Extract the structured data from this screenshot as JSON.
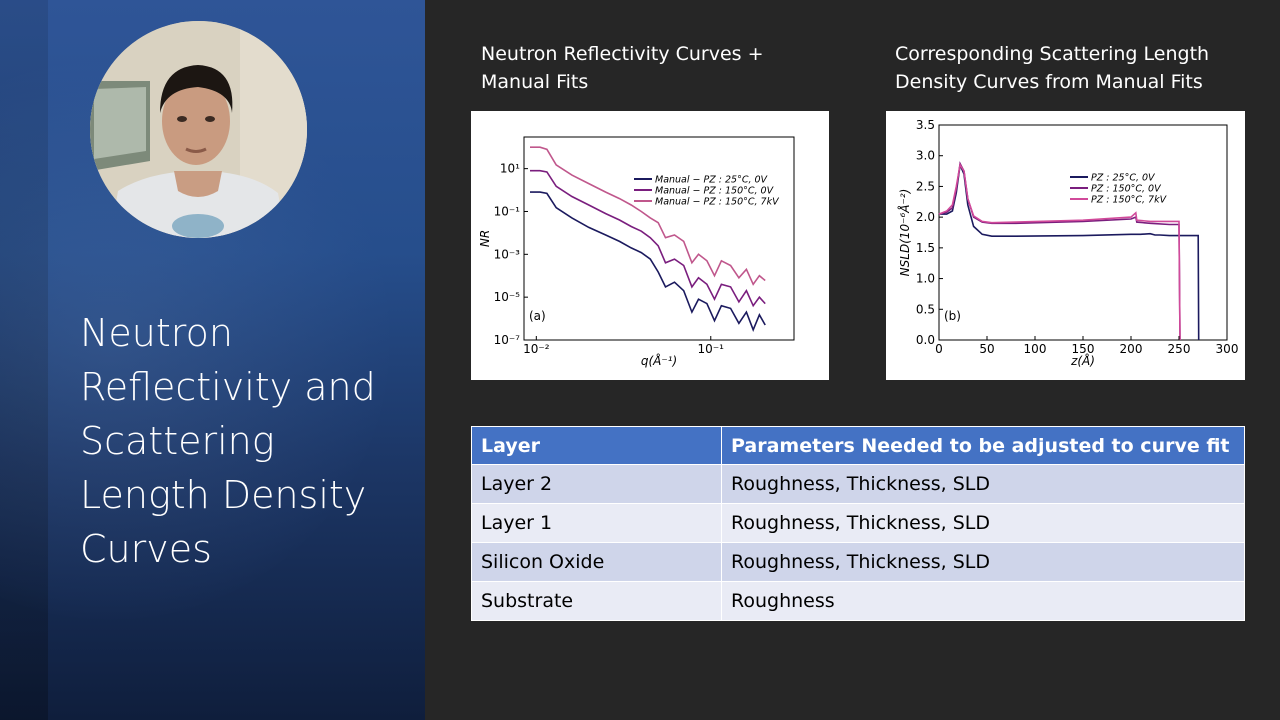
{
  "slide": {
    "title": "Neutron Reflectivity and Scattering Length Density Curves",
    "colors": {
      "panel_blue": "#2f5597",
      "table_header": "#4472c4",
      "row_odd": "#cfd5ea",
      "row_even": "#e9ebf5",
      "background": "#262626"
    }
  },
  "webcam": {
    "icon": "presenter-video-feed"
  },
  "captions": {
    "nr": "Neutron Reflectivity Curves + Manual Fits",
    "sld": "Corresponding Scattering Length Density Curves from Manual Fits"
  },
  "chart_data": [
    {
      "type": "line",
      "panel_label": "(a)",
      "xlabel": "q(Å⁻¹)",
      "ylabel": "NR",
      "x_scale": "log",
      "y_scale": "log",
      "xlim": [
        0.0085,
        0.3
      ],
      "ylim": [
        1e-07,
        300
      ],
      "x_ticks": [
        {
          "value": 0.01,
          "label": "10⁻²"
        },
        {
          "value": 0.1,
          "label": "10⁻¹"
        }
      ],
      "y_ticks": [
        {
          "value": 10,
          "label": "10¹"
        },
        {
          "value": 0.1,
          "label": "10⁻¹"
        },
        {
          "value": 0.001,
          "label": "10⁻³"
        },
        {
          "value": 1e-05,
          "label": "10⁻⁵"
        },
        {
          "value": 1e-07,
          "label": "10⁻⁷"
        }
      ],
      "legend_position": "top-right",
      "series": [
        {
          "name": "Manual − PZ : 25°C, 0V",
          "color": "#1b1a5e",
          "x": [
            0.0092,
            0.0105,
            0.0115,
            0.013,
            0.016,
            0.02,
            0.025,
            0.03,
            0.035,
            0.04,
            0.045,
            0.05,
            0.055,
            0.062,
            0.07,
            0.078,
            0.085,
            0.095,
            0.105,
            0.115,
            0.13,
            0.145,
            0.16,
            0.175,
            0.19,
            0.205
          ],
          "y": [
            0.8,
            0.8,
            0.7,
            0.15,
            0.05,
            0.018,
            0.008,
            0.004,
            0.002,
            0.0012,
            0.0006,
            0.00015,
            3e-05,
            5e-05,
            2e-05,
            2e-06,
            8e-06,
            5e-06,
            8e-07,
            4e-06,
            3e-06,
            6e-07,
            2e-06,
            3e-07,
            1.5e-06,
            5e-07
          ]
        },
        {
          "name": "Manual − PZ : 150°C, 0V",
          "color": "#7a1e7e",
          "x": [
            0.0092,
            0.0105,
            0.0115,
            0.013,
            0.016,
            0.02,
            0.025,
            0.03,
            0.035,
            0.04,
            0.045,
            0.05,
            0.055,
            0.062,
            0.07,
            0.078,
            0.085,
            0.095,
            0.105,
            0.115,
            0.13,
            0.145,
            0.16,
            0.175,
            0.19,
            0.205
          ],
          "y": [
            8,
            8,
            7,
            1.5,
            0.5,
            0.2,
            0.08,
            0.04,
            0.02,
            0.012,
            0.006,
            0.0025,
            0.0004,
            0.0006,
            0.0003,
            3e-05,
            8e-05,
            4e-05,
            8e-06,
            4e-05,
            3e-05,
            6e-06,
            2e-05,
            4e-06,
            1e-05,
            5e-06
          ]
        },
        {
          "name": "Manual − PZ : 150°C, 7kV",
          "color": "#c0578c",
          "x": [
            0.0092,
            0.0105,
            0.0115,
            0.013,
            0.016,
            0.02,
            0.025,
            0.03,
            0.035,
            0.04,
            0.045,
            0.05,
            0.055,
            0.062,
            0.07,
            0.078,
            0.085,
            0.095,
            0.105,
            0.115,
            0.13,
            0.145,
            0.16,
            0.175,
            0.19,
            0.205
          ],
          "y": [
            100,
            100,
            80,
            15,
            5,
            2,
            0.8,
            0.4,
            0.2,
            0.1,
            0.05,
            0.03,
            0.006,
            0.008,
            0.004,
            0.0004,
            0.001,
            0.0005,
            0.0001,
            0.0005,
            0.0003,
            8e-05,
            0.0002,
            4e-05,
            0.0001,
            6e-05
          ]
        }
      ]
    },
    {
      "type": "line",
      "panel_label": "(b)",
      "xlabel": "z(Å)",
      "ylabel": "NSLD(10⁻⁶Å⁻²)",
      "xlim": [
        0,
        300
      ],
      "ylim": [
        0,
        3.5
      ],
      "x_ticks": [
        0,
        50,
        100,
        150,
        200,
        250,
        300
      ],
      "y_ticks": [
        0.0,
        0.5,
        1.0,
        1.5,
        2.0,
        2.5,
        3.0,
        3.5
      ],
      "legend_position": "top-right",
      "series": [
        {
          "name": "PZ : 25°C, 0V",
          "color": "#1b1a5e",
          "x": [
            0,
            8,
            14,
            18,
            22,
            26,
            30,
            36,
            45,
            55,
            80,
            150,
            200,
            210,
            220,
            225,
            230,
            240,
            250,
            262,
            268,
            270,
            270.5
          ],
          "y": [
            2.05,
            2.05,
            2.1,
            2.4,
            2.85,
            2.7,
            2.2,
            1.85,
            1.72,
            1.69,
            1.69,
            1.7,
            1.72,
            1.72,
            1.73,
            1.71,
            1.71,
            1.7,
            1.7,
            1.7,
            1.7,
            1.7,
            0
          ]
        },
        {
          "name": "PZ : 150°C, 0V",
          "color": "#7a1e7e",
          "x": [
            0,
            8,
            14,
            18,
            22,
            26,
            30,
            36,
            45,
            55,
            80,
            150,
            200,
            205,
            206,
            220,
            240,
            250,
            251
          ],
          "y": [
            2.05,
            2.08,
            2.15,
            2.45,
            2.87,
            2.75,
            2.3,
            2.0,
            1.92,
            1.9,
            1.9,
            1.93,
            1.97,
            2.0,
            1.92,
            1.9,
            1.88,
            1.88,
            0
          ]
        },
        {
          "name": "PZ : 150°C, 7kV",
          "color": "#d14a9a",
          "x": [
            0,
            8,
            14,
            18,
            22,
            26,
            30,
            36,
            45,
            55,
            80,
            150,
            200,
            205,
            206,
            220,
            240,
            250,
            251
          ],
          "y": [
            2.05,
            2.1,
            2.2,
            2.5,
            2.85,
            2.75,
            2.3,
            2.02,
            1.93,
            1.91,
            1.92,
            1.95,
            2.0,
            2.07,
            1.95,
            1.93,
            1.93,
            1.93,
            0
          ]
        }
      ]
    }
  ],
  "table": {
    "headers": [
      "Layer",
      "Parameters Needed to be adjusted to curve fit"
    ],
    "rows": [
      [
        "Layer 2",
        "Roughness, Thickness, SLD"
      ],
      [
        "Layer 1",
        "Roughness, Thickness, SLD"
      ],
      [
        "Silicon Oxide",
        "Roughness, Thickness, SLD"
      ],
      [
        "Substrate",
        "Roughness"
      ]
    ]
  }
}
